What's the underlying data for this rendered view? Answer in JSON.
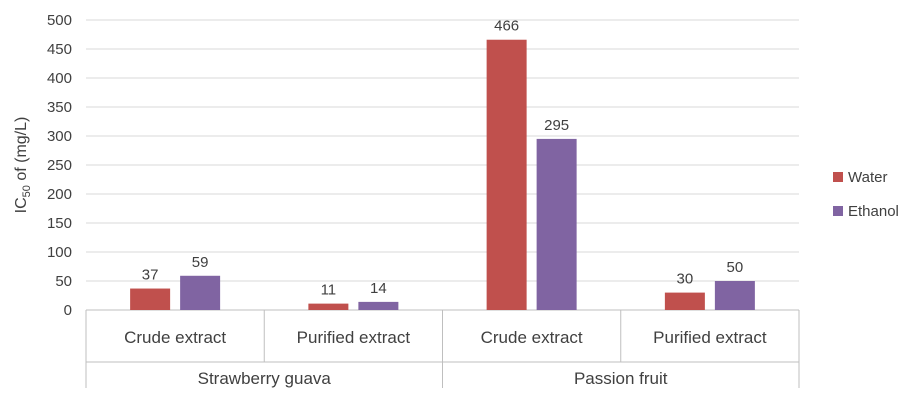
{
  "chart_data": {
    "type": "bar",
    "ylabel_main": "IC",
    "ylabel_sub": "50",
    "ylabel_rest": " of (mg/L)",
    "ylim": [
      0,
      500
    ],
    "yticks": [
      0,
      50,
      100,
      150,
      200,
      250,
      300,
      350,
      400,
      450,
      500
    ],
    "grid": true,
    "legend_position": "right",
    "groups": [
      {
        "label": "Strawberry guava",
        "categories": [
          "Crude extract",
          "Purified extract"
        ]
      },
      {
        "label": "Passion fruit",
        "categories": [
          "Crude extract",
          "Purified extract"
        ]
      }
    ],
    "categories": [
      "Crude extract",
      "Purified extract",
      "Crude extract",
      "Purified extract"
    ],
    "series": [
      {
        "name": "Water",
        "color": "#C0504D",
        "values": [
          37,
          11,
          466,
          30
        ]
      },
      {
        "name": "Ethanol",
        "color": "#8064A2",
        "values": [
          59,
          14,
          295,
          50
        ]
      }
    ]
  }
}
